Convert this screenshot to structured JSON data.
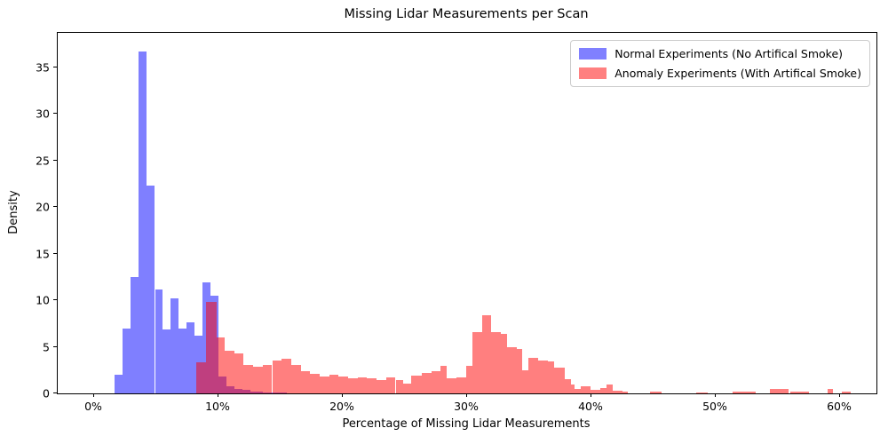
{
  "chart_data": {
    "type": "histogram",
    "title": "Missing Lidar Measurements per Scan",
    "xlabel": "Percentage of Missing Lidar Measurements",
    "ylabel": "Density",
    "xlim": [
      -2.86,
      63.0
    ],
    "ylim": [
      0,
      38.7
    ],
    "x_tick_values": [
      0,
      10,
      20,
      30,
      40,
      50,
      60
    ],
    "x_tick_labels": [
      "0%",
      "10%",
      "20%",
      "30%",
      "40%",
      "50%",
      "60%"
    ],
    "y_tick_values": [
      0,
      5,
      10,
      15,
      20,
      25,
      30,
      35
    ],
    "y_tick_labels": [
      "0",
      "5",
      "10",
      "15",
      "20",
      "25",
      "30",
      "35"
    ],
    "grid": false,
    "legend_position": "upper right",
    "series": [
      {
        "name": "Normal Experiments (No Artifical Smoke)",
        "color": "rgba(0,0,255,0.5)",
        "solid_color": "#8080ff",
        "bins_pct_start_end_density": [
          [
            1.71,
            2.36,
            2.0
          ],
          [
            2.36,
            3.0,
            7.0
          ],
          [
            3.0,
            3.64,
            12.5
          ],
          [
            3.64,
            4.29,
            36.7
          ],
          [
            4.29,
            4.96,
            22.3
          ],
          [
            4.96,
            5.57,
            11.2
          ],
          [
            5.57,
            6.21,
            6.9
          ],
          [
            6.21,
            6.86,
            10.2
          ],
          [
            6.86,
            7.5,
            7.0
          ],
          [
            7.5,
            8.14,
            7.6
          ],
          [
            8.14,
            8.79,
            6.2
          ],
          [
            8.79,
            9.43,
            11.9
          ],
          [
            9.43,
            10.07,
            10.5
          ],
          [
            10.07,
            10.71,
            1.8
          ],
          [
            10.71,
            11.36,
            0.8
          ],
          [
            11.36,
            12.0,
            0.5
          ],
          [
            12.0,
            12.64,
            0.35
          ],
          [
            12.64,
            13.64,
            0.2
          ],
          [
            13.64,
            14.71,
            0.12
          ],
          [
            14.71,
            15.57,
            0.07
          ]
        ]
      },
      {
        "name": "Anomaly Experiments (With Artifical Smoke)",
        "color": "rgba(255,0,0,0.5)",
        "solid_color": "#ff8080",
        "bins_pct_start_end_density": [
          [
            8.27,
            9.04,
            3.3
          ],
          [
            9.04,
            9.91,
            9.8
          ],
          [
            9.91,
            10.56,
            6.0
          ],
          [
            10.56,
            11.33,
            4.6
          ],
          [
            11.33,
            12.09,
            4.3
          ],
          [
            12.09,
            12.86,
            3.1
          ],
          [
            12.86,
            13.62,
            2.9
          ],
          [
            13.62,
            14.39,
            3.1
          ],
          [
            14.39,
            15.15,
            3.5
          ],
          [
            15.15,
            15.91,
            3.7
          ],
          [
            15.91,
            16.68,
            3.1
          ],
          [
            16.68,
            17.44,
            2.4
          ],
          [
            17.44,
            18.21,
            2.1
          ],
          [
            18.21,
            18.97,
            1.85
          ],
          [
            18.97,
            19.74,
            2.0
          ],
          [
            19.74,
            20.5,
            1.85
          ],
          [
            20.5,
            21.26,
            1.6
          ],
          [
            21.26,
            22.03,
            1.75
          ],
          [
            22.03,
            22.79,
            1.6
          ],
          [
            22.79,
            23.56,
            1.4
          ],
          [
            23.56,
            24.32,
            1.75
          ],
          [
            24.32,
            24.9,
            1.45
          ],
          [
            24.9,
            25.6,
            1.05
          ],
          [
            25.6,
            26.4,
            1.9
          ],
          [
            26.4,
            27.2,
            2.15
          ],
          [
            27.2,
            27.9,
            2.35
          ],
          [
            27.9,
            28.45,
            3.0
          ],
          [
            28.45,
            29.2,
            1.6
          ],
          [
            29.2,
            30.0,
            1.75
          ],
          [
            30.0,
            30.5,
            2.95
          ],
          [
            30.5,
            31.3,
            6.55
          ],
          [
            31.3,
            32.0,
            8.43
          ],
          [
            32.0,
            32.8,
            6.6
          ],
          [
            32.8,
            33.3,
            6.4
          ],
          [
            33.3,
            34.05,
            4.95
          ],
          [
            34.05,
            34.5,
            4.8
          ],
          [
            34.5,
            35.0,
            2.45
          ],
          [
            35.0,
            35.8,
            3.8
          ],
          [
            35.8,
            36.6,
            3.55
          ],
          [
            36.6,
            37.1,
            3.45
          ],
          [
            37.1,
            37.9,
            2.75
          ],
          [
            37.9,
            38.4,
            1.5
          ],
          [
            38.4,
            38.7,
            0.95
          ],
          [
            38.7,
            39.2,
            0.5
          ],
          [
            39.2,
            40.0,
            0.8
          ],
          [
            40.0,
            40.8,
            0.4
          ],
          [
            40.8,
            41.3,
            0.55
          ],
          [
            41.3,
            41.8,
            0.95
          ],
          [
            41.8,
            42.6,
            0.3
          ],
          [
            42.6,
            43.0,
            0.15
          ],
          [
            44.8,
            45.7,
            0.15
          ],
          [
            48.5,
            49.4,
            0.1
          ],
          [
            51.4,
            53.3,
            0.2
          ],
          [
            54.4,
            55.1,
            0.5
          ],
          [
            55.1,
            55.9,
            0.45
          ],
          [
            56.1,
            57.6,
            0.15
          ],
          [
            59.1,
            59.5,
            0.45
          ],
          [
            60.2,
            60.9,
            0.15
          ]
        ]
      }
    ]
  }
}
